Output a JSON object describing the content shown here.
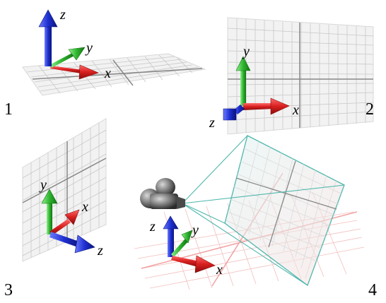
{
  "panels": [
    {
      "number": "1",
      "axes": {
        "x": "x",
        "y": "y",
        "z": "z"
      }
    },
    {
      "number": "2",
      "axes": {
        "x": "x",
        "y": "y",
        "z": "z"
      }
    },
    {
      "number": "3",
      "axes": {
        "x": "x",
        "y": "y",
        "z": "z"
      }
    },
    {
      "number": "4",
      "axes": {
        "x": "x",
        "y": "y",
        "z": "z"
      }
    }
  ],
  "colors": {
    "x_axis": "#d81f1f",
    "y_axis": "#2fb52f",
    "z_axis": "#1e2fd0",
    "grid": "#bfbfbf",
    "grid_major": "#808080",
    "plane_fill": "#f2f2f2",
    "frustum": "#4fb7ad",
    "ground_grid": "#f2b7b7",
    "camera": "#606060"
  }
}
